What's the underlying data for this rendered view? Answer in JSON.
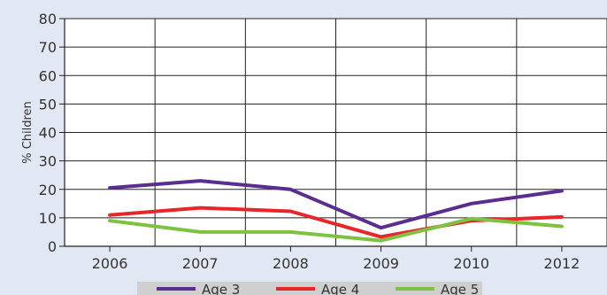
{
  "chart_data": {
    "type": "line",
    "title": "",
    "xlabel": "",
    "ylabel": "% Children",
    "categories": [
      "2006",
      "2007",
      "2008",
      "2009",
      "2010",
      "2012"
    ],
    "yticks": [
      "0",
      "10",
      "20",
      "30",
      "40",
      "50",
      "60",
      "70",
      "80"
    ],
    "ylim": [
      0,
      80
    ],
    "grid": true,
    "legend_position": "bottom",
    "series": [
      {
        "name": "Age 3",
        "color": "#5b2d8e",
        "values": [
          20.5,
          23,
          20,
          6.5,
          15,
          19.5
        ]
      },
      {
        "name": "Age 4",
        "color": "#e8262a",
        "values": [
          11,
          13.5,
          12.3,
          3.3,
          9,
          10.3
        ]
      },
      {
        "name": "Age 5",
        "color": "#7dc242",
        "values": [
          9,
          5,
          5,
          2,
          9.7,
          7
        ]
      }
    ]
  }
}
